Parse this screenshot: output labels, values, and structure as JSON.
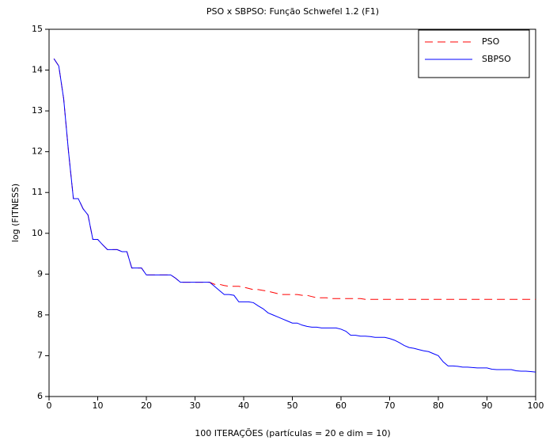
{
  "chart_data": {
    "type": "line",
    "title": "PSO x SBPSO: Função Schwefel 1.2 (F1)",
    "x_label": "100 ITERAÇÕES (partículas = 20 e dim = 10)",
    "y_label": "log (FITNESS)",
    "x": [
      1,
      2,
      3,
      4,
      5,
      6,
      7,
      8,
      9,
      10,
      11,
      12,
      13,
      14,
      15,
      16,
      17,
      18,
      19,
      20,
      21,
      22,
      23,
      24,
      25,
      26,
      27,
      28,
      29,
      30,
      31,
      32,
      33,
      34,
      35,
      36,
      37,
      38,
      39,
      40,
      41,
      42,
      43,
      44,
      45,
      46,
      47,
      48,
      49,
      50,
      51,
      52,
      53,
      54,
      55,
      56,
      57,
      58,
      59,
      60,
      61,
      62,
      63,
      64,
      65,
      66,
      67,
      68,
      69,
      70,
      71,
      72,
      73,
      74,
      75,
      76,
      77,
      78,
      79,
      80,
      81,
      82,
      83,
      84,
      85,
      86,
      87,
      88,
      89,
      90,
      91,
      92,
      93,
      94,
      95,
      96,
      97,
      98,
      99,
      100
    ],
    "series": [
      {
        "name": "PSO",
        "color": "#ff0000",
        "dashed": true,
        "values": [
          14.28,
          14.1,
          13.3,
          12.0,
          10.85,
          10.85,
          10.6,
          10.45,
          9.85,
          9.85,
          9.72,
          9.6,
          9.6,
          9.6,
          9.55,
          9.55,
          9.15,
          9.15,
          9.15,
          8.98,
          8.98,
          8.98,
          8.98,
          8.98,
          8.98,
          8.9,
          8.8,
          8.8,
          8.8,
          8.8,
          8.8,
          8.8,
          8.8,
          8.75,
          8.75,
          8.72,
          8.7,
          8.7,
          8.7,
          8.68,
          8.65,
          8.62,
          8.62,
          8.6,
          8.58,
          8.55,
          8.52,
          8.5,
          8.5,
          8.5,
          8.5,
          8.48,
          8.48,
          8.45,
          8.42,
          8.42,
          8.42,
          8.4,
          8.4,
          8.4,
          8.4,
          8.4,
          8.4,
          8.4,
          8.38,
          8.38,
          8.38,
          8.38,
          8.38,
          8.38,
          8.38,
          8.38,
          8.38,
          8.38,
          8.38,
          8.38,
          8.38,
          8.38,
          8.38,
          8.38,
          8.38,
          8.38,
          8.38,
          8.38,
          8.38,
          8.38,
          8.38,
          8.38,
          8.38,
          8.38,
          8.38,
          8.38,
          8.38,
          8.38,
          8.38,
          8.38,
          8.38,
          8.38,
          8.38,
          8.38
        ]
      },
      {
        "name": "SBPSO",
        "color": "#0000ff",
        "dashed": false,
        "values": [
          14.28,
          14.1,
          13.3,
          12.0,
          10.85,
          10.85,
          10.6,
          10.45,
          9.85,
          9.85,
          9.72,
          9.6,
          9.6,
          9.6,
          9.55,
          9.55,
          9.15,
          9.15,
          9.15,
          8.98,
          8.98,
          8.98,
          8.98,
          8.98,
          8.98,
          8.9,
          8.8,
          8.8,
          8.8,
          8.8,
          8.8,
          8.8,
          8.8,
          8.7,
          8.6,
          8.5,
          8.5,
          8.48,
          8.32,
          8.32,
          8.32,
          8.3,
          8.22,
          8.15,
          8.05,
          8.0,
          7.95,
          7.9,
          7.85,
          7.8,
          7.8,
          7.75,
          7.72,
          7.7,
          7.7,
          7.68,
          7.68,
          7.68,
          7.68,
          7.65,
          7.6,
          7.5,
          7.5,
          7.48,
          7.48,
          7.47,
          7.45,
          7.45,
          7.45,
          7.42,
          7.38,
          7.32,
          7.25,
          7.2,
          7.18,
          7.15,
          7.12,
          7.1,
          7.05,
          7.0,
          6.85,
          6.75,
          6.75,
          6.74,
          6.72,
          6.72,
          6.71,
          6.7,
          6.7,
          6.7,
          6.67,
          6.66,
          6.66,
          6.66,
          6.66,
          6.63,
          6.62,
          6.62,
          6.61,
          6.6
        ]
      }
    ],
    "xlim": [
      0,
      100
    ],
    "xticks": [
      0,
      10,
      20,
      30,
      40,
      50,
      60,
      70,
      80,
      90,
      100
    ],
    "ylim": [
      6,
      15
    ],
    "yticks": [
      6,
      7,
      8,
      9,
      10,
      11,
      12,
      13,
      14,
      15
    ],
    "legend": "upper right"
  }
}
